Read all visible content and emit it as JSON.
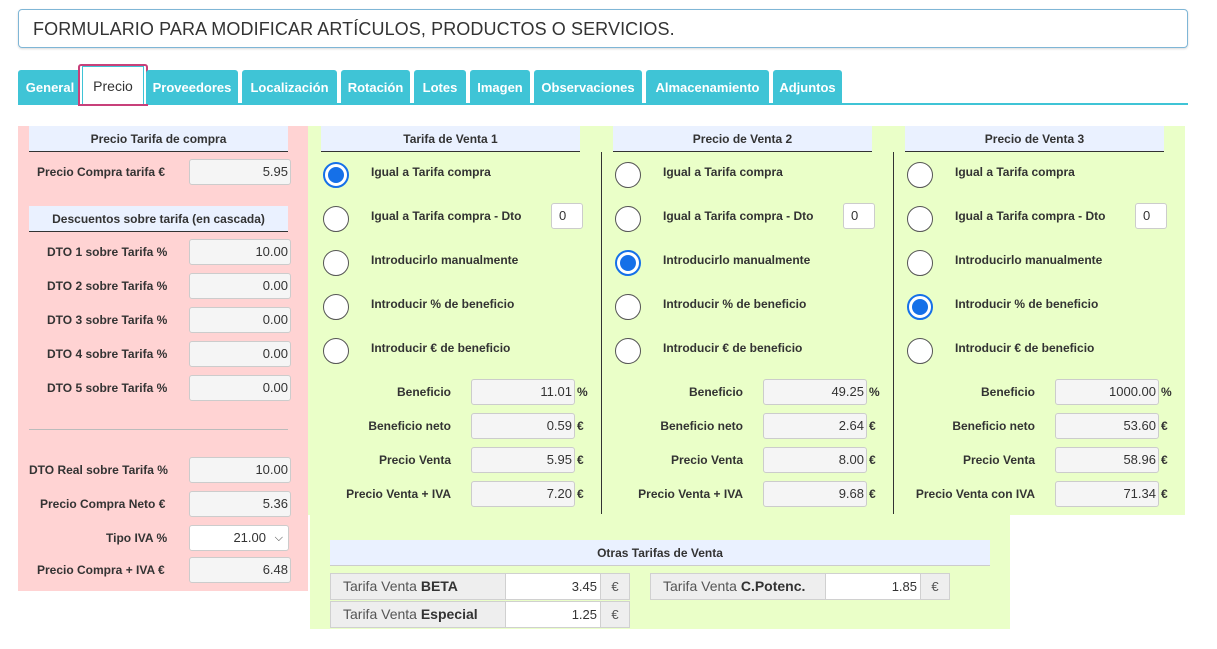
{
  "header": {
    "title": "FORMULARIO PARA MODIFICAR ARTÍCULOS, PRODUCTOS O SERVICIOS."
  },
  "tabs": [
    {
      "label": "General"
    },
    {
      "label": "Precio"
    },
    {
      "label": "Proveedores"
    },
    {
      "label": "Localización"
    },
    {
      "label": "Rotación"
    },
    {
      "label": "Lotes"
    },
    {
      "label": "Imagen"
    },
    {
      "label": "Observaciones"
    },
    {
      "label": "Almacenamiento"
    },
    {
      "label": "Adjuntos"
    }
  ],
  "compra": {
    "title": "Precio Tarifa de compra",
    "precio_label": "Precio Compra tarifa €",
    "precio_value": "5.95",
    "descuentos_title": "Descuentos sobre tarifa (en cascada)",
    "dtos": [
      {
        "label": "DTO 1 sobre Tarifa %",
        "value": "10.00"
      },
      {
        "label": "DTO 2 sobre Tarifa %",
        "value": "0.00"
      },
      {
        "label": "DTO 3 sobre Tarifa %",
        "value": "0.00"
      },
      {
        "label": "DTO 4 sobre Tarifa %",
        "value": "0.00"
      },
      {
        "label": "DTO 5 sobre Tarifa %",
        "value": "0.00"
      }
    ],
    "dto_real_label": "DTO Real sobre Tarifa %",
    "dto_real_value": "10.00",
    "neto_label": "Precio Compra Neto €",
    "neto_value": "5.36",
    "iva_label": "Tipo IVA %",
    "iva_value": "21.00",
    "con_iva_label": "Precio Compra + IVA €",
    "con_iva_value": "6.48"
  },
  "ventas": [
    {
      "title": "Tarifa de Venta 1",
      "options": [
        "Igual a Tarifa compra",
        "Igual a Tarifa compra - Dto",
        "Introducirlo manualmente",
        "Introducir % de beneficio",
        "Introducir € de beneficio"
      ],
      "selected": 0,
      "dto_value": "0",
      "beneficio_label": "Beneficio",
      "beneficio_value": "11.01",
      "beneficio_unit": "%",
      "neto_label": "Beneficio neto",
      "neto_value": "0.59",
      "neto_unit": "€",
      "precio_label": "Precio Venta",
      "precio_value": "5.95",
      "precio_unit": "€",
      "iva_label": "Precio Venta + IVA",
      "iva_value": "7.20",
      "iva_unit": "€"
    },
    {
      "title": "Precio de Venta 2",
      "options": [
        "Igual a Tarifa compra",
        "Igual a Tarifa compra - Dto",
        "Introducirlo manualmente",
        "Introducir % de beneficio",
        "Introducir € de beneficio"
      ],
      "selected": 2,
      "dto_value": "0",
      "beneficio_label": "Beneficio",
      "beneficio_value": "49.25",
      "beneficio_unit": "%",
      "neto_label": "Beneficio neto",
      "neto_value": "2.64",
      "neto_unit": "€",
      "precio_label": "Precio Venta",
      "precio_value": "8.00",
      "precio_unit": "€",
      "iva_label": "Precio Venta + IVA",
      "iva_value": "9.68",
      "iva_unit": "€"
    },
    {
      "title": "Precio de Venta 3",
      "options": [
        "Igual a Tarifa compra",
        "Igual a Tarifa compra - Dto",
        "Introducirlo manualmente",
        "Introducir % de beneficio",
        "Introducir € de beneficio"
      ],
      "selected": 3,
      "dto_value": "0",
      "beneficio_label": "Beneficio",
      "beneficio_value": "1000.00",
      "beneficio_unit": "%",
      "neto_label": "Beneficio neto",
      "neto_value": "53.60",
      "neto_unit": "€",
      "precio_label": "Precio Venta",
      "precio_value": "58.96",
      "precio_unit": "€",
      "iva_label": "Precio Venta con IVA",
      "iva_value": "71.34",
      "iva_unit": "€"
    }
  ],
  "otras": {
    "title": "Otras Tarifas de Venta",
    "items": [
      {
        "prefix": "Tarifa Venta",
        "name": "BETA",
        "value": "3.45",
        "unit": "€"
      },
      {
        "prefix": "Tarifa Venta",
        "name": "C.Potenc.",
        "value": "1.85",
        "unit": "€"
      },
      {
        "prefix": "Tarifa Venta",
        "name": "Especial",
        "value": "1.25",
        "unit": "€"
      }
    ]
  }
}
